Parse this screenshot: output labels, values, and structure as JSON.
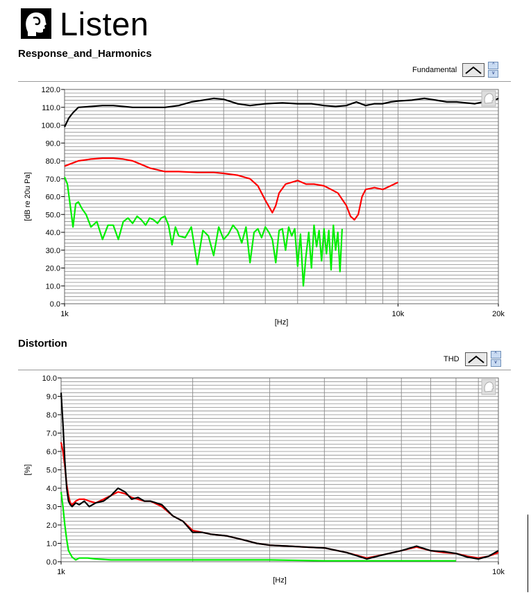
{
  "brand": {
    "name": "Listen"
  },
  "colors": {
    "fundamental": "#000000",
    "second": "#ff0000",
    "third": "#00ee00",
    "grid": "#8a8a8a",
    "plot_bg": "#ffffff"
  },
  "icons": [
    "head-logo-icon",
    "plot-glyph-icon",
    "spin-up-icon",
    "spin-down-icon"
  ],
  "chart_data": [
    {
      "type": "line",
      "title": "Response_and_Harmonics",
      "legend": "Fundamental",
      "xlabel": "[Hz]",
      "ylabel": "[dB re 20u Pa]",
      "xscale": "log",
      "xlim": [
        1000,
        20000
      ],
      "ylim": [
        0,
        120
      ],
      "xticks": [
        1000,
        10000,
        20000
      ],
      "xtick_labels": [
        "1k",
        "10k",
        "20k"
      ],
      "yticks": [
        0,
        10,
        20,
        30,
        40,
        50,
        60,
        70,
        80,
        90,
        100,
        110,
        120
      ],
      "ytick_labels": [
        "0.0",
        "10.0",
        "20.0",
        "30.0",
        "40.0",
        "50.0",
        "60.0",
        "70.0",
        "80.0",
        "90.0",
        "100.0",
        "110.0",
        "120.0"
      ],
      "grid": true,
      "series": [
        {
          "color": "#000000",
          "x": [
            1000,
            1030,
            1060,
            1100,
            1200,
            1300,
            1400,
            1500,
            1600,
            1800,
            2000,
            2200,
            2400,
            2600,
            2800,
            3000,
            3300,
            3600,
            4000,
            4500,
            5000,
            5500,
            6000,
            6500,
            7000,
            7500,
            8000,
            8500,
            9000,
            9500,
            10000,
            11000,
            12000,
            13000,
            14000,
            15000,
            16000,
            17000,
            18000,
            19000,
            20000
          ],
          "y": [
            99,
            104,
            107,
            110,
            110.5,
            111,
            111,
            110.5,
            110,
            110,
            110,
            111,
            113,
            114,
            115,
            114.5,
            112,
            111,
            112,
            112.5,
            112,
            112,
            111,
            110.5,
            111,
            113,
            111,
            112,
            112,
            113,
            113.5,
            114,
            115,
            114,
            113,
            113,
            112.5,
            112,
            113,
            113,
            115
          ]
        },
        {
          "color": "#ff0000",
          "x": [
            1000,
            1030,
            1100,
            1200,
            1300,
            1400,
            1500,
            1600,
            1700,
            1800,
            1900,
            2000,
            2200,
            2500,
            2800,
            3000,
            3300,
            3600,
            3800,
            4000,
            4200,
            4300,
            4400,
            4600,
            5000,
            5300,
            5600,
            6000,
            6300,
            6600,
            7000,
            7200,
            7400,
            7600,
            7800,
            8000,
            8500,
            9000,
            9500,
            10000
          ],
          "y": [
            77,
            78,
            80,
            81,
            81.5,
            81.5,
            81,
            80,
            78,
            76,
            75,
            74,
            74,
            73.5,
            73.5,
            73,
            72,
            70,
            66,
            58,
            51,
            55,
            62,
            67,
            69,
            67,
            67,
            66,
            64,
            62,
            55,
            49,
            47,
            50,
            60,
            64,
            65,
            64,
            66,
            68
          ]
        },
        {
          "color": "#00ee00",
          "x": [
            1000,
            1020,
            1040,
            1060,
            1080,
            1100,
            1130,
            1160,
            1200,
            1250,
            1300,
            1350,
            1400,
            1450,
            1500,
            1550,
            1600,
            1650,
            1700,
            1750,
            1800,
            1850,
            1900,
            1950,
            2000,
            2050,
            2100,
            2150,
            2200,
            2300,
            2400,
            2500,
            2600,
            2700,
            2800,
            2900,
            3000,
            3100,
            3200,
            3300,
            3400,
            3500,
            3600,
            3700,
            3800,
            3900,
            4000,
            4100,
            4200,
            4300,
            4400,
            4500,
            4600,
            4700,
            4800,
            4900,
            5000,
            5100,
            5200,
            5300,
            5400,
            5500,
            5600,
            5700,
            5800,
            5900,
            6000,
            6100,
            6200,
            6300,
            6400,
            6500,
            6600,
            6700,
            6800
          ],
          "y": [
            71,
            67,
            55,
            43,
            56,
            57,
            53,
            50,
            43,
            46,
            36,
            44,
            44,
            36,
            46,
            48,
            45,
            49,
            47,
            44,
            48,
            47,
            45,
            48,
            49,
            44,
            33,
            43,
            38,
            37,
            43,
            22,
            41,
            38,
            27,
            43,
            36,
            39,
            44,
            41,
            34,
            43,
            23,
            40,
            42,
            37,
            43,
            40,
            36,
            23,
            41,
            42,
            30,
            43,
            38,
            42,
            21,
            39,
            10,
            27,
            40,
            20,
            44,
            32,
            41,
            24,
            42,
            28,
            41,
            19,
            44,
            30,
            40,
            18,
            42
          ]
        }
      ]
    },
    {
      "type": "line",
      "title": "Distortion",
      "legend": "THD",
      "xlabel": "[Hz]",
      "ylabel": "[%]",
      "xscale": "log",
      "xlim": [
        1000,
        10000
      ],
      "ylim": [
        0,
        10
      ],
      "xticks": [
        1000,
        10000
      ],
      "xtick_labels": [
        "1k",
        "10k"
      ],
      "yticks": [
        0,
        1,
        2,
        3,
        4,
        5,
        6,
        7,
        8,
        9,
        10
      ],
      "ytick_labels": [
        "0.0",
        "1.0",
        "2.0",
        "3.0",
        "4.0",
        "5.0",
        "6.0",
        "7.0",
        "8.0",
        "9.0",
        "10.0"
      ],
      "grid": true,
      "series": [
        {
          "color": "#ff0000",
          "x": [
            1000,
            1010,
            1020,
            1030,
            1040,
            1050,
            1060,
            1080,
            1100,
            1130,
            1160,
            1200,
            1250,
            1300,
            1350,
            1400,
            1450,
            1500,
            1550,
            1600,
            1700,
            1800,
            1900,
            2000,
            2100,
            2200,
            2400,
            2600,
            2800,
            3000,
            3300,
            3600,
            4000,
            4500,
            5000,
            5500,
            6000,
            6500,
            7000,
            7500,
            8000,
            8500,
            9000,
            9500,
            10000
          ],
          "y": [
            6.5,
            6.0,
            5.2,
            4.2,
            3.6,
            3.2,
            3.1,
            3.3,
            3.4,
            3.4,
            3.3,
            3.2,
            3.4,
            3.6,
            3.8,
            3.7,
            3.5,
            3.4,
            3.3,
            3.3,
            3.0,
            2.5,
            2.2,
            1.7,
            1.6,
            1.5,
            1.4,
            1.2,
            1.0,
            0.9,
            0.85,
            0.8,
            0.75,
            0.5,
            0.2,
            0.4,
            0.6,
            0.8,
            0.6,
            0.5,
            0.45,
            0.3,
            0.2,
            0.3,
            0.5
          ]
        },
        {
          "color": "#000000",
          "x": [
            1000,
            1010,
            1020,
            1030,
            1040,
            1050,
            1060,
            1080,
            1100,
            1130,
            1160,
            1200,
            1250,
            1300,
            1350,
            1400,
            1450,
            1500,
            1550,
            1600,
            1700,
            1800,
            1900,
            2000,
            2100,
            2200,
            2400,
            2600,
            2800,
            3000,
            3300,
            3600,
            4000,
            4500,
            5000,
            5500,
            6000,
            6500,
            7000,
            7500,
            8000,
            8500,
            9000,
            9500,
            10000
          ],
          "y": [
            9.2,
            7.5,
            5.5,
            4.0,
            3.3,
            3.1,
            3.0,
            3.2,
            3.1,
            3.3,
            3.0,
            3.2,
            3.3,
            3.6,
            4.0,
            3.8,
            3.4,
            3.5,
            3.3,
            3.3,
            3.1,
            2.5,
            2.2,
            1.6,
            1.6,
            1.5,
            1.4,
            1.2,
            1.0,
            0.9,
            0.85,
            0.8,
            0.75,
            0.5,
            0.15,
            0.4,
            0.6,
            0.85,
            0.6,
            0.55,
            0.45,
            0.25,
            0.15,
            0.3,
            0.6
          ]
        },
        {
          "color": "#00ee00",
          "x": [
            1000,
            1010,
            1020,
            1030,
            1040,
            1060,
            1080,
            1100,
            1150,
            1200,
            1300,
            1500,
            2000,
            3000,
            4000,
            5000,
            6000,
            7000,
            8000
          ],
          "y": [
            3.8,
            3.0,
            2.0,
            1.2,
            0.6,
            0.25,
            0.1,
            0.2,
            0.2,
            0.15,
            0.1,
            0.1,
            0.1,
            0.1,
            0.05,
            0.05,
            0.05,
            0.05,
            0.05
          ]
        }
      ]
    }
  ]
}
